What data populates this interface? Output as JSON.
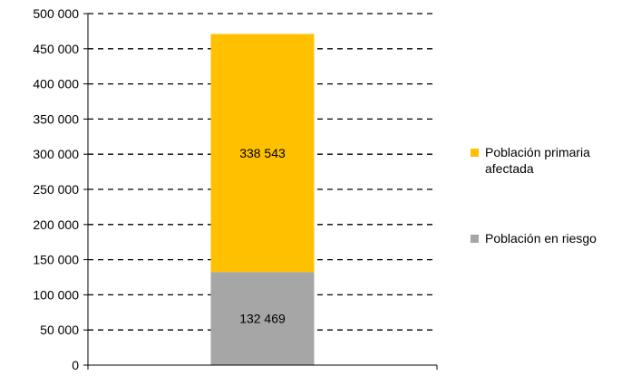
{
  "chart_data": {
    "type": "bar",
    "stacked": true,
    "categories": [
      ""
    ],
    "ylim": [
      0,
      500000
    ],
    "yticks": [
      0,
      50000,
      100000,
      150000,
      200000,
      250000,
      300000,
      350000,
      400000,
      450000,
      500000
    ],
    "ytick_labels": [
      "0",
      "50 000",
      "100 000",
      "150 000",
      "200 000",
      "250 000",
      "300 000",
      "350 000",
      "400 000",
      "450 000",
      "500 000"
    ],
    "grid": "dashed horizontal",
    "legend_position": "right",
    "series": [
      {
        "name": "Población en riesgo",
        "legend_lines": [
          "Población en riesgo"
        ],
        "values": [
          132469
        ],
        "value_labels": [
          "132 469"
        ],
        "color": "#A6A6A6"
      },
      {
        "name": "Población primaria afectada",
        "legend_lines": [
          "Población primaria",
          "afectada"
        ],
        "values": [
          338543
        ],
        "value_labels": [
          "338 543"
        ],
        "color": "#FFC000"
      }
    ]
  }
}
